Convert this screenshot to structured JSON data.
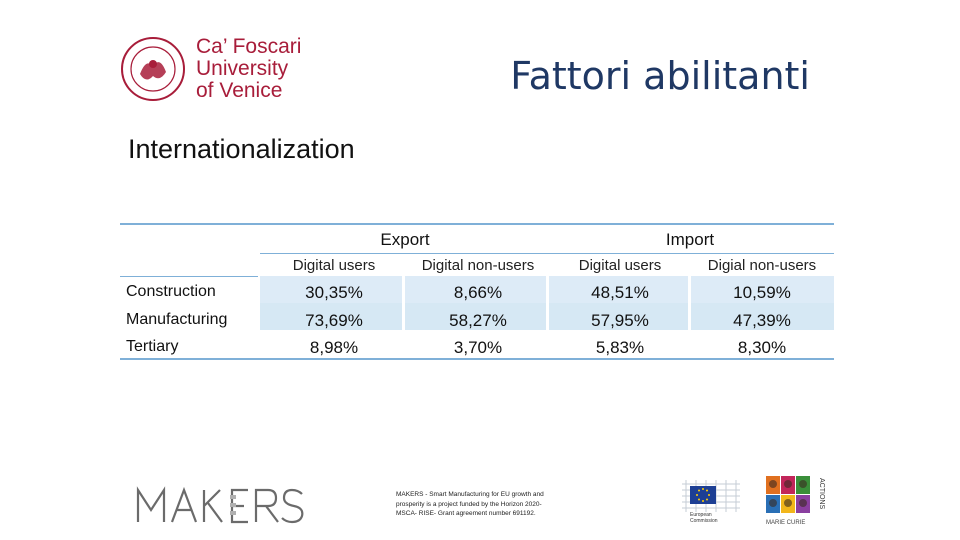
{
  "header": {
    "university_lines": [
      "Ca’ Foscari",
      "University",
      "of Venice"
    ],
    "title": "Fattori abilitanti",
    "subtitle": "Internationalization"
  },
  "table": {
    "groups": [
      "Export",
      "Import"
    ],
    "columns": [
      "Digital users",
      "Digital non-users",
      "Digital users",
      "Digial non-users"
    ],
    "rows": [
      {
        "label": "Construction",
        "values": [
          "30,35%",
          "8,66%",
          "48,51%",
          "10,59%"
        ]
      },
      {
        "label": "Manufacturing",
        "values": [
          "73,69%",
          "58,27%",
          "57,95%",
          "47,39%"
        ]
      },
      {
        "label": "Tertiary",
        "values": [
          "8,98%",
          "3,70%",
          "5,83%",
          "8,30%"
        ]
      }
    ]
  },
  "footer": {
    "makers_logo_text": "MAKERS",
    "funding_note": "MAKERS - Smart Manufacturing for EU growth and prosperity is a project funded by the Horizon 2020-MSCA- RISE- Grant agreement number 691192.",
    "eu_logo_text": "European Commission",
    "msca_logo_text": "ACTIONS"
  },
  "colors": {
    "brand_red": "#a81d3a",
    "title_blue": "#1f3864",
    "table_rule": "#7fb0d8",
    "table_band": "#ddebf7"
  }
}
